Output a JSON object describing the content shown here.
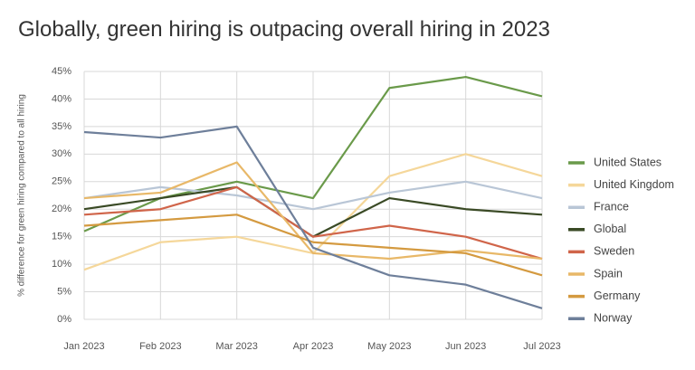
{
  "chart_data": {
    "type": "line",
    "title": "Globally, green hiring is outpacing overall hiring in 2023",
    "y_label": "% difference for green hiring compared to all hiring",
    "categories": [
      "Jan 2023",
      "Feb 2023",
      "Mar 2023",
      "Apr 2023",
      "May 2023",
      "Jun 2023",
      "Jul 2023"
    ],
    "series": [
      {
        "name": "United States",
        "color": "#6a9a4a",
        "values": [
          16,
          22,
          25,
          22,
          42,
          44,
          40.5
        ]
      },
      {
        "name": "United Kingdom",
        "color": "#f5d79a",
        "values": [
          9,
          14,
          15,
          12,
          26,
          30,
          26
        ]
      },
      {
        "name": "France",
        "color": "#b9c6d6",
        "values": [
          22,
          24,
          22.5,
          20,
          23,
          25,
          22
        ]
      },
      {
        "name": "Global",
        "color": "#3a4a25",
        "values": [
          20,
          22,
          24,
          15,
          22,
          20,
          19
        ]
      },
      {
        "name": "Sweden",
        "color": "#d0654a",
        "values": [
          19,
          20,
          24,
          15,
          17,
          15,
          11
        ]
      },
      {
        "name": "Spain",
        "color": "#e8b868",
        "values": [
          22,
          23,
          28.5,
          12,
          11,
          12.5,
          11
        ]
      },
      {
        "name": "Germany",
        "color": "#d49a40",
        "values": [
          17,
          18,
          19,
          14,
          13,
          12,
          8
        ]
      },
      {
        "name": "Norway",
        "color": "#6e7f9a",
        "values": [
          34,
          33,
          35,
          13,
          8,
          6.3,
          2
        ]
      }
    ],
    "ylim": [
      0,
      45
    ],
    "yticks": [
      {
        "value": 0,
        "label": "0%"
      },
      {
        "value": 5,
        "label": "5%"
      },
      {
        "value": 10,
        "label": "10%"
      },
      {
        "value": 15,
        "label": "15%"
      },
      {
        "value": 20,
        "label": "20%"
      },
      {
        "value": 25,
        "label": "25%"
      },
      {
        "value": 30,
        "label": "30%"
      },
      {
        "value": 35,
        "label": "35%"
      },
      {
        "value": 40,
        "label": "40%"
      },
      {
        "value": 45,
        "label": "45%"
      }
    ],
    "grid": true,
    "legend": "right"
  }
}
